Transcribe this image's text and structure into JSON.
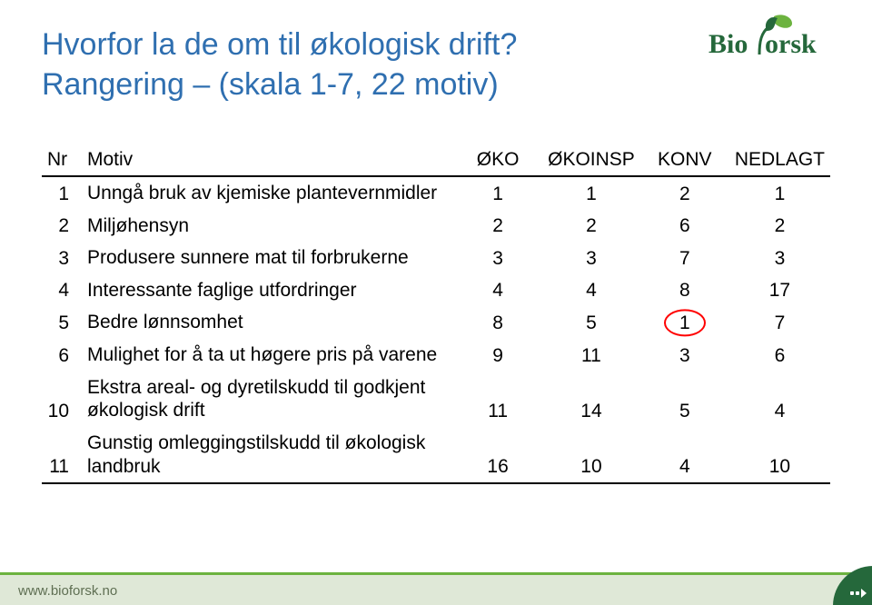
{
  "title": {
    "line1": "Hvorfor la de om til økologisk drift?",
    "line2": "Rangering – (skala 1-7, 22 motiv)",
    "color": "#2f6fb0",
    "fontsize_pt": 26
  },
  "logo": {
    "text": "Bio",
    "text2": "orsk",
    "brand_name": "Bioforsk",
    "leaf_color_light": "#6cb33f",
    "leaf_color_dark": "#25683b",
    "text_color": "#25683b"
  },
  "table": {
    "header": {
      "nr": "Nr",
      "motiv": "Motiv",
      "oko": "ØKO",
      "okoinsp": "ØKOINSP",
      "konv": "KONV",
      "nedlagt": "NEDLAGT"
    },
    "font_size_pt": 16,
    "border_color": "#000000",
    "rows": [
      {
        "nr": "1",
        "motiv": "Unngå bruk av kjemiske plantevernmidler",
        "oko": "1",
        "okoinsp": "1",
        "konv": "2",
        "nedlagt": "1"
      },
      {
        "nr": "2",
        "motiv": "Miljøhensyn",
        "oko": "2",
        "okoinsp": "2",
        "konv": "6",
        "nedlagt": "2"
      },
      {
        "nr": "3",
        "motiv": "Produsere sunnere mat til forbrukerne",
        "oko": "3",
        "okoinsp": "3",
        "konv": "7",
        "nedlagt": "3"
      },
      {
        "nr": "4",
        "motiv": "Interessante faglige utfordringer",
        "oko": "4",
        "okoinsp": "4",
        "konv": "8",
        "nedlagt": "17"
      },
      {
        "nr": "5",
        "motiv": "Bedre lønnsomhet",
        "oko": "8",
        "okoinsp": "5",
        "konv": "1",
        "nedlagt": "7",
        "circle_on": "konv"
      },
      {
        "nr": "6",
        "motiv": "Mulighet for å ta ut høgere pris på varene",
        "oko": "9",
        "okoinsp": "11",
        "konv": "3",
        "nedlagt": "6"
      },
      {
        "nr": "10",
        "motiv": "Ekstra areal- og dyretilskudd til godkjent økologisk drift",
        "oko": "11",
        "okoinsp": "14",
        "konv": "5",
        "nedlagt": "4"
      },
      {
        "nr": "11",
        "motiv": "Gunstig omleggingstilskudd til økologisk landbruk",
        "oko": "16",
        "okoinsp": "10",
        "konv": "4",
        "nedlagt": "10"
      }
    ],
    "circle_color": "#ff0000"
  },
  "footer": {
    "url": "www.bioforsk.no",
    "bar_bg": "#dfe8d7",
    "bar_line": "#6cb33f",
    "text_color": "#5f6f53",
    "corner_color": "#25683b"
  }
}
